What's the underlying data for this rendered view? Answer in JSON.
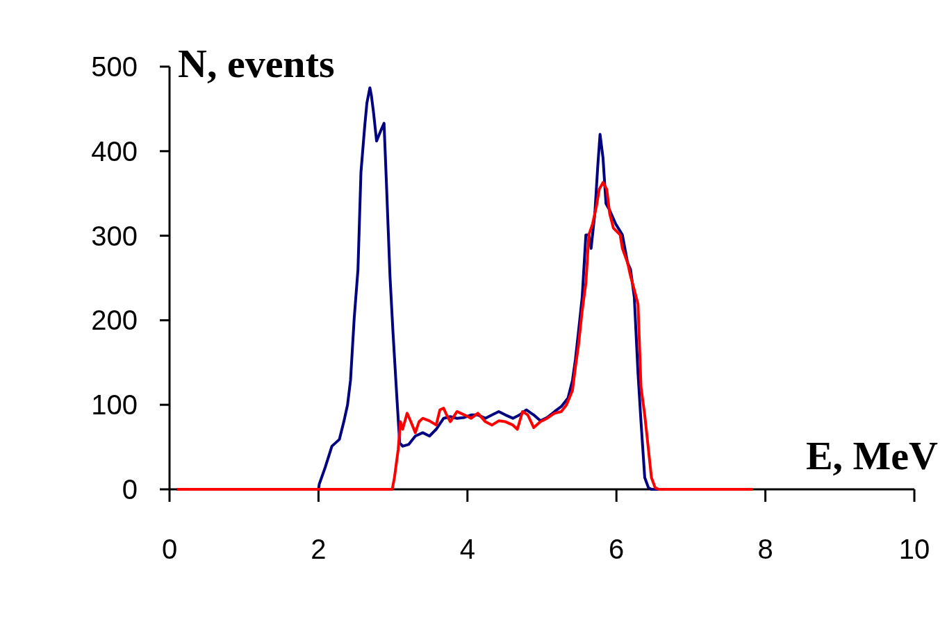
{
  "chart_data": {
    "type": "line",
    "xlabel": "E, MeV",
    "ylabel": "N, events",
    "xlim": [
      0,
      10
    ],
    "ylim": [
      0,
      500
    ],
    "xticks": [
      0,
      2,
      4,
      6,
      8,
      10
    ],
    "yticks": [
      0,
      100,
      200,
      300,
      400,
      500
    ],
    "grid": false,
    "series": [
      {
        "color": "#000080",
        "x": [
          0.1,
          2.0,
          2.01,
          2.09,
          2.18,
          2.28,
          2.34,
          2.39,
          2.43,
          2.48,
          2.53,
          2.57,
          2.62,
          2.65,
          2.69,
          2.71,
          2.74,
          2.78,
          2.84,
          2.88,
          2.91,
          2.96,
          3.0,
          3.05,
          3.09,
          3.13,
          3.21,
          3.3,
          3.4,
          3.49,
          3.58,
          3.68,
          3.77,
          3.86,
          3.96,
          4.05,
          4.14,
          4.24,
          4.33,
          4.42,
          4.51,
          4.61,
          4.7,
          4.79,
          4.89,
          4.98,
          5.07,
          5.17,
          5.26,
          5.35,
          5.41,
          5.45,
          5.49,
          5.54,
          5.59,
          5.63,
          5.66,
          5.71,
          5.75,
          5.78,
          5.82,
          5.86,
          5.91,
          5.99,
          6.08,
          6.15,
          6.19,
          6.24,
          6.29,
          6.33,
          6.38,
          6.43,
          6.47,
          6.6
        ],
        "values": [
          0,
          0,
          6,
          26,
          51,
          59,
          80,
          100,
          129,
          203,
          260,
          375,
          429,
          457,
          475,
          466,
          445,
          412,
          425,
          433,
          367,
          252,
          186,
          112,
          55,
          51,
          53,
          63,
          67,
          63,
          71,
          84,
          86,
          84,
          85,
          88,
          88,
          84,
          88,
          92,
          88,
          84,
          88,
          94,
          88,
          81,
          85,
          92,
          98,
          108,
          129,
          154,
          186,
          227,
          301,
          301,
          285,
          326,
          383,
          420,
          392,
          338,
          330,
          314,
          301,
          268,
          260,
          227,
          137,
          80,
          14,
          2,
          0,
          0
        ]
      },
      {
        "color": "#ff0000",
        "x": [
          0.1,
          2.99,
          3.02,
          3.07,
          3.1,
          3.13,
          3.19,
          3.24,
          3.3,
          3.35,
          3.4,
          3.49,
          3.58,
          3.63,
          3.68,
          3.72,
          3.77,
          3.86,
          3.96,
          4.05,
          4.14,
          4.24,
          4.33,
          4.42,
          4.51,
          4.61,
          4.67,
          4.74,
          4.81,
          4.89,
          4.98,
          5.07,
          5.17,
          5.26,
          5.33,
          5.41,
          5.45,
          5.49,
          5.54,
          5.59,
          5.63,
          5.68,
          5.73,
          5.77,
          5.82,
          5.87,
          5.91,
          5.96,
          6.05,
          6.08,
          6.15,
          6.19,
          6.24,
          6.29,
          6.33,
          6.38,
          6.43,
          6.47,
          6.52,
          6.57,
          7.83
        ],
        "values": [
          0,
          0,
          14,
          47,
          80,
          71,
          90,
          80,
          67,
          80,
          84,
          81,
          76,
          94,
          96,
          88,
          80,
          92,
          88,
          84,
          90,
          80,
          76,
          81,
          80,
          76,
          71,
          92,
          88,
          73,
          80,
          84,
          90,
          92,
          100,
          117,
          145,
          170,
          211,
          244,
          301,
          314,
          334,
          355,
          363,
          355,
          326,
          309,
          301,
          285,
          268,
          252,
          236,
          219,
          121,
          88,
          47,
          14,
          2,
          0,
          0
        ]
      }
    ]
  }
}
